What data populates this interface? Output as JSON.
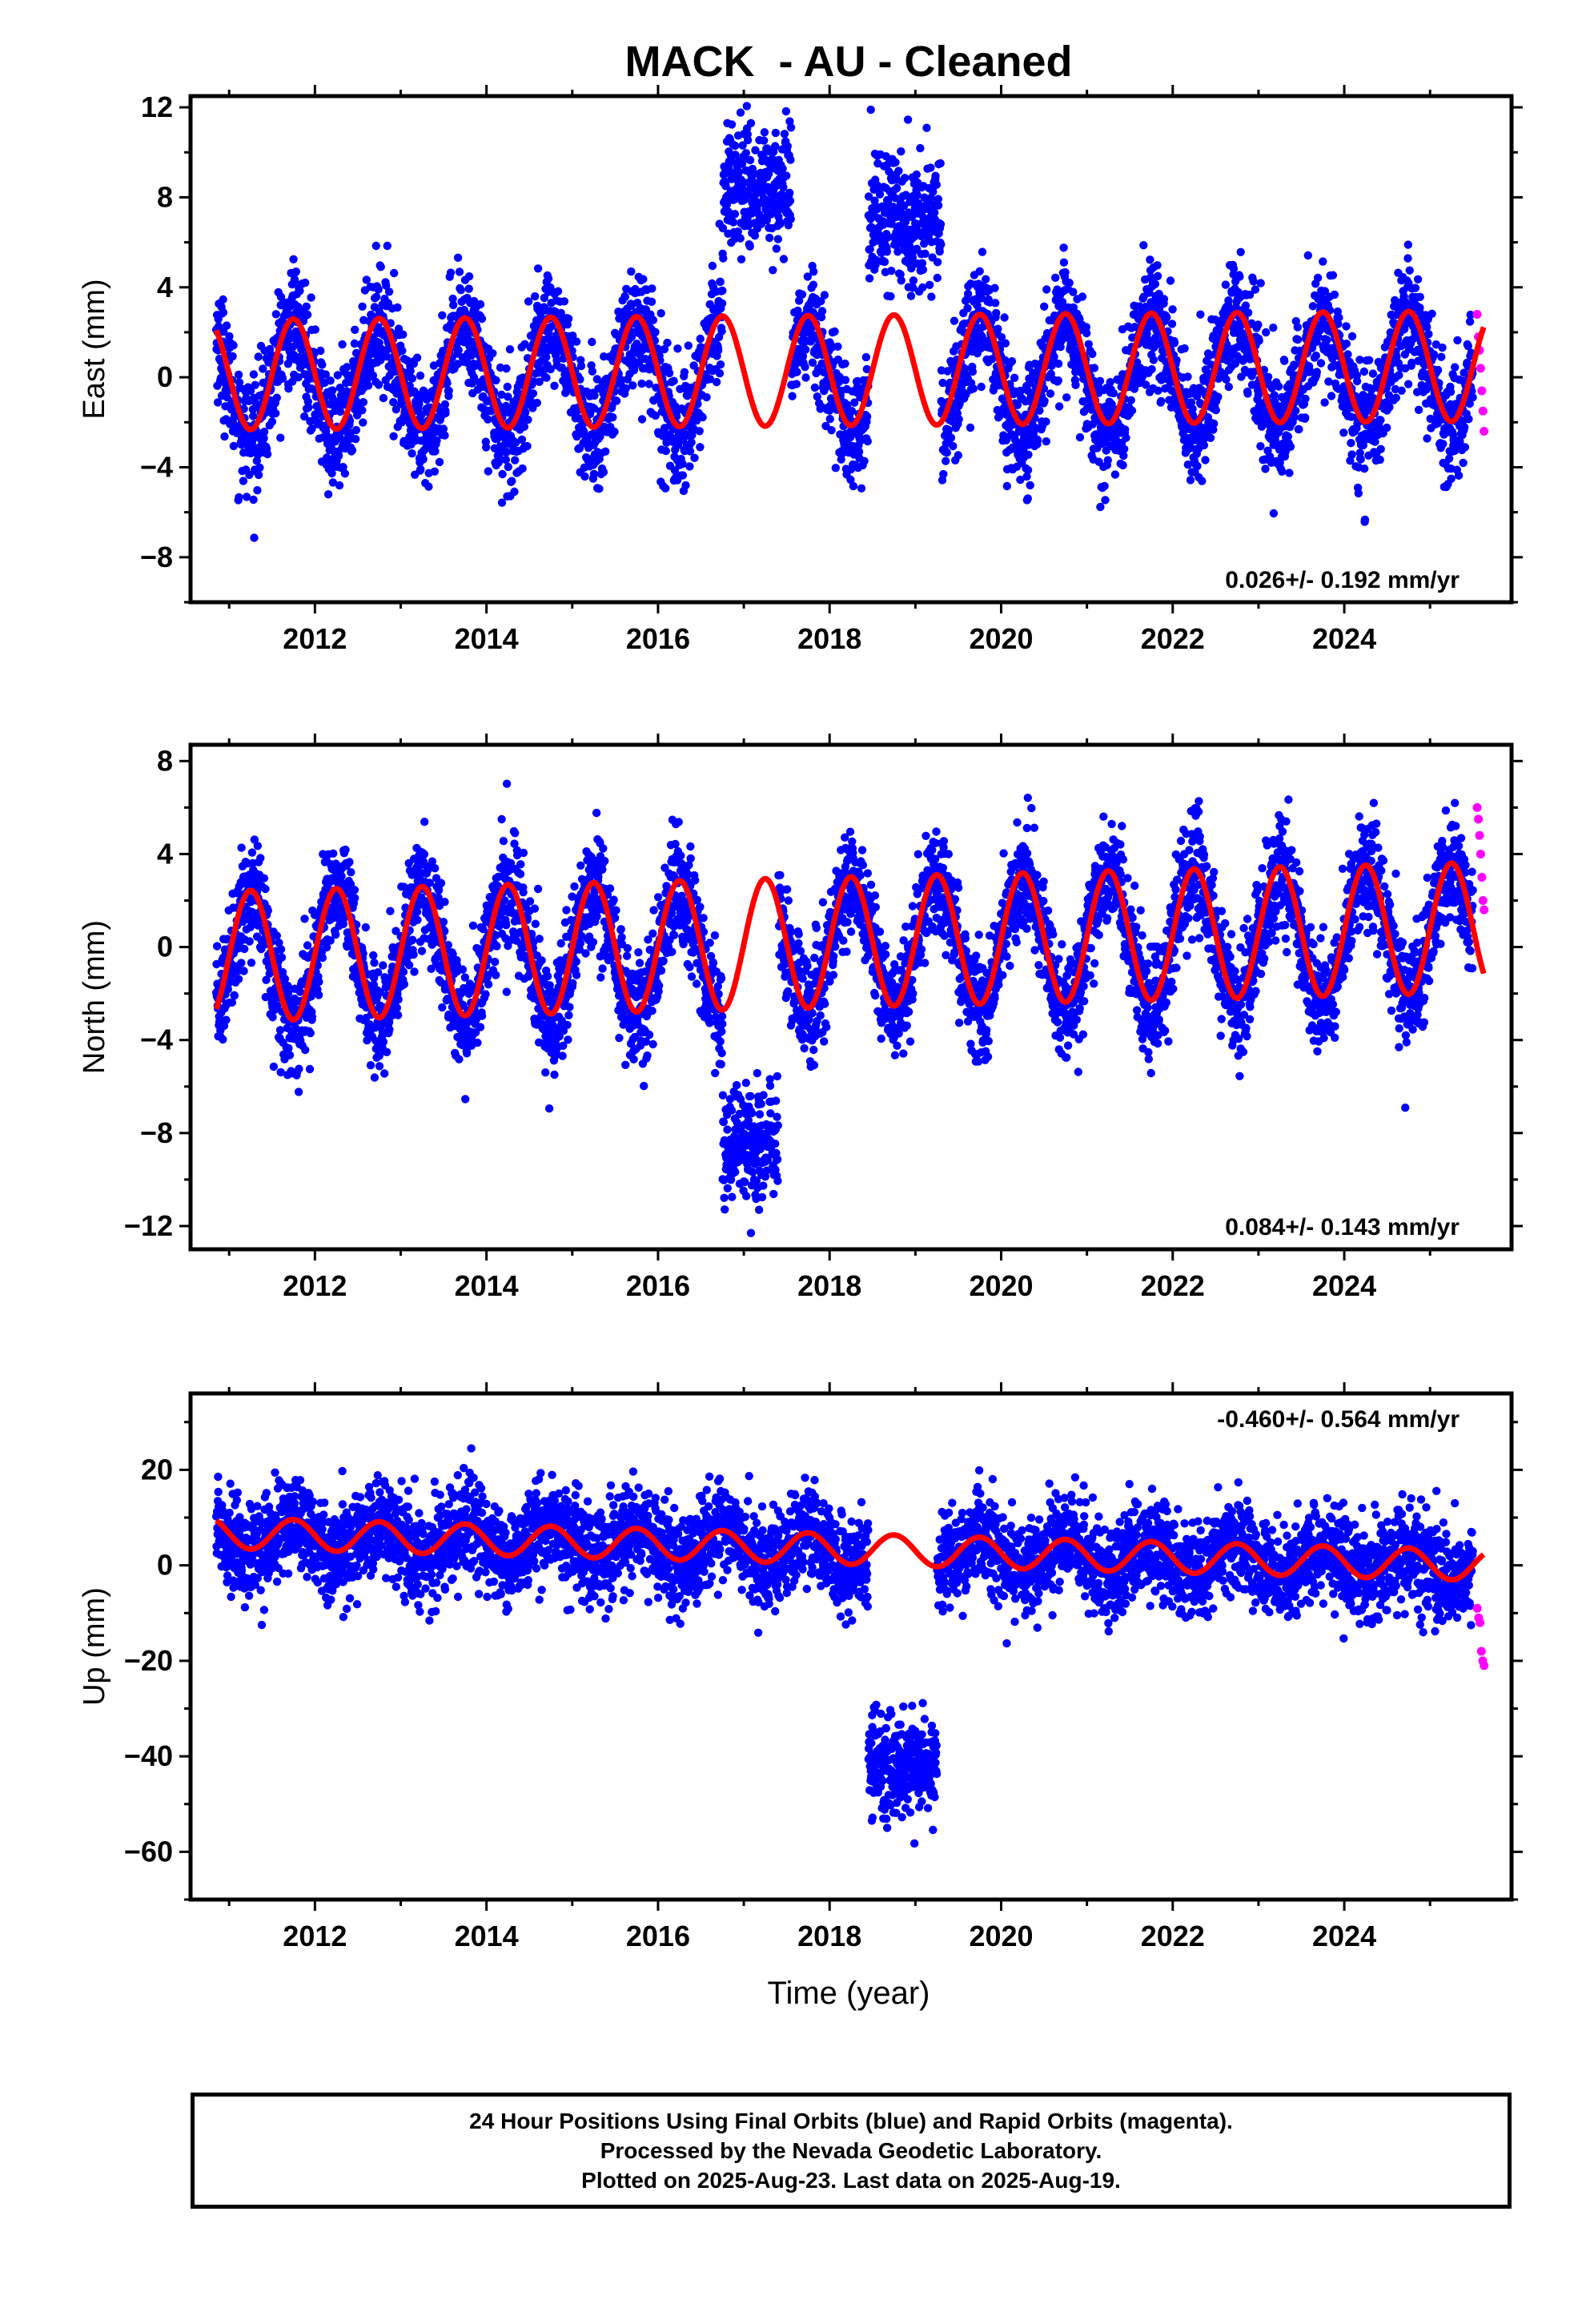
{
  "title": "MACK  - AU - Cleaned",
  "xlabel": "Time (year)",
  "caption": {
    "line1": "24 Hour Positions Using Final Orbits (blue) and Rapid Orbits (magenta).",
    "line2": "Processed by the Nevada Geodetic Laboratory.",
    "line3": "Plotted on 2025-Aug-23. Last data on 2025-Aug-19."
  },
  "colors": {
    "final_orbits": "#0000ff",
    "rapid_orbits": "#ff00ff",
    "model_fit": "#ff0000"
  },
  "chart_data": [
    {
      "type": "scatter",
      "name": "east",
      "ylabel": "East (mm)",
      "xlim": [
        2010.55,
        2025.95
      ],
      "ylim": [
        -10,
        12.5
      ],
      "xticks": [
        2012,
        2014,
        2016,
        2018,
        2020,
        2022,
        2024
      ],
      "yticks": [
        -8,
        -4,
        0,
        4,
        8,
        12
      ],
      "rate_label": "0.026+/- 0.192 mm/yr",
      "rate_label_position": "bottom-right",
      "series": [
        {
          "name": "Final Orbits",
          "color": "#0000ff",
          "x_range": [
            2010.85,
            2025.5
          ],
          "seasonal_amplitude": 2.5,
          "offset": 0.0,
          "trend": 0.026,
          "noise_sd": 1.3,
          "clusters": [
            {
              "x_range": [
                2016.75,
                2017.55
              ],
              "y_center": 8.5,
              "spread": 1.7
            },
            {
              "x_range": [
                2018.45,
                2019.3
              ],
              "y_center": 7.0,
              "spread": 1.7
            }
          ]
        },
        {
          "name": "Rapid Orbits",
          "color": "#ff00ff",
          "x_range": [
            2025.55,
            2025.63
          ],
          "y_values": [
            2.8,
            1.8,
            1.2,
            0.4,
            -0.6,
            -1.5,
            -2.4
          ]
        },
        {
          "name": "Model Fit",
          "color": "#ff0000",
          "seasonal_amplitude": 2.45,
          "offset": 0.3,
          "trend": 0.026
        }
      ]
    },
    {
      "type": "scatter",
      "name": "north",
      "ylabel": "North (mm)",
      "xlim": [
        2010.55,
        2025.95
      ],
      "ylim": [
        -13,
        8.7
      ],
      "xticks": [
        2012,
        2014,
        2016,
        2018,
        2020,
        2022,
        2024
      ],
      "yticks": [
        -12,
        -8,
        -4,
        0,
        4,
        8
      ],
      "rate_label": "0.084+/- 0.143 mm/yr",
      "rate_label_position": "bottom-right",
      "series": [
        {
          "name": "Final Orbits",
          "color": "#0000ff",
          "x_range": [
            2010.85,
            2025.5
          ],
          "seasonal_amplitude": 2.8,
          "offset": 0.0,
          "trend": 0.084,
          "noise_sd": 1.2,
          "clusters": [
            {
              "x_range": [
                2016.75,
                2017.4
              ],
              "y_center": -8.5,
              "spread": 1.6
            }
          ]
        },
        {
          "name": "Rapid Orbits",
          "color": "#ff00ff",
          "x_range": [
            2025.55,
            2025.63
          ],
          "y_values": [
            6.0,
            5.5,
            4.8,
            4.0,
            3.0,
            2.0,
            1.6
          ]
        },
        {
          "name": "Model Fit",
          "color": "#ff0000",
          "seasonal_amplitude": 2.8,
          "offset": 0.2,
          "trend": 0.084
        }
      ]
    },
    {
      "type": "scatter",
      "name": "up",
      "ylabel": "Up (mm)",
      "xlim": [
        2010.55,
        2025.95
      ],
      "ylim": [
        -70,
        36
      ],
      "xticks": [
        2012,
        2014,
        2016,
        2018,
        2020,
        2022,
        2024
      ],
      "yticks": [
        -60,
        -40,
        -20,
        0,
        20
      ],
      "rate_label": "-0.460+/- 0.564 mm/yr",
      "rate_label_position": "top-right",
      "series": [
        {
          "name": "Final Orbits",
          "color": "#0000ff",
          "x_range": [
            2010.85,
            2025.5
          ],
          "seasonal_amplitude": 3.5,
          "offset": 3.0,
          "trend": -0.46,
          "noise_sd": 5.0,
          "clusters": [
            {
              "x_range": [
                2018.45,
                2019.25
              ],
              "y_center": -42,
              "spread": 6.5
            }
          ]
        },
        {
          "name": "Rapid Orbits",
          "color": "#ff00ff",
          "x_range": [
            2025.55,
            2025.63
          ],
          "y_values": [
            -9,
            -11,
            -12,
            -18,
            -20,
            -21
          ]
        },
        {
          "name": "Model Fit",
          "color": "#ff0000",
          "seasonal_amplitude": 3.2,
          "offset": 3.5,
          "trend": -0.46
        }
      ]
    }
  ]
}
